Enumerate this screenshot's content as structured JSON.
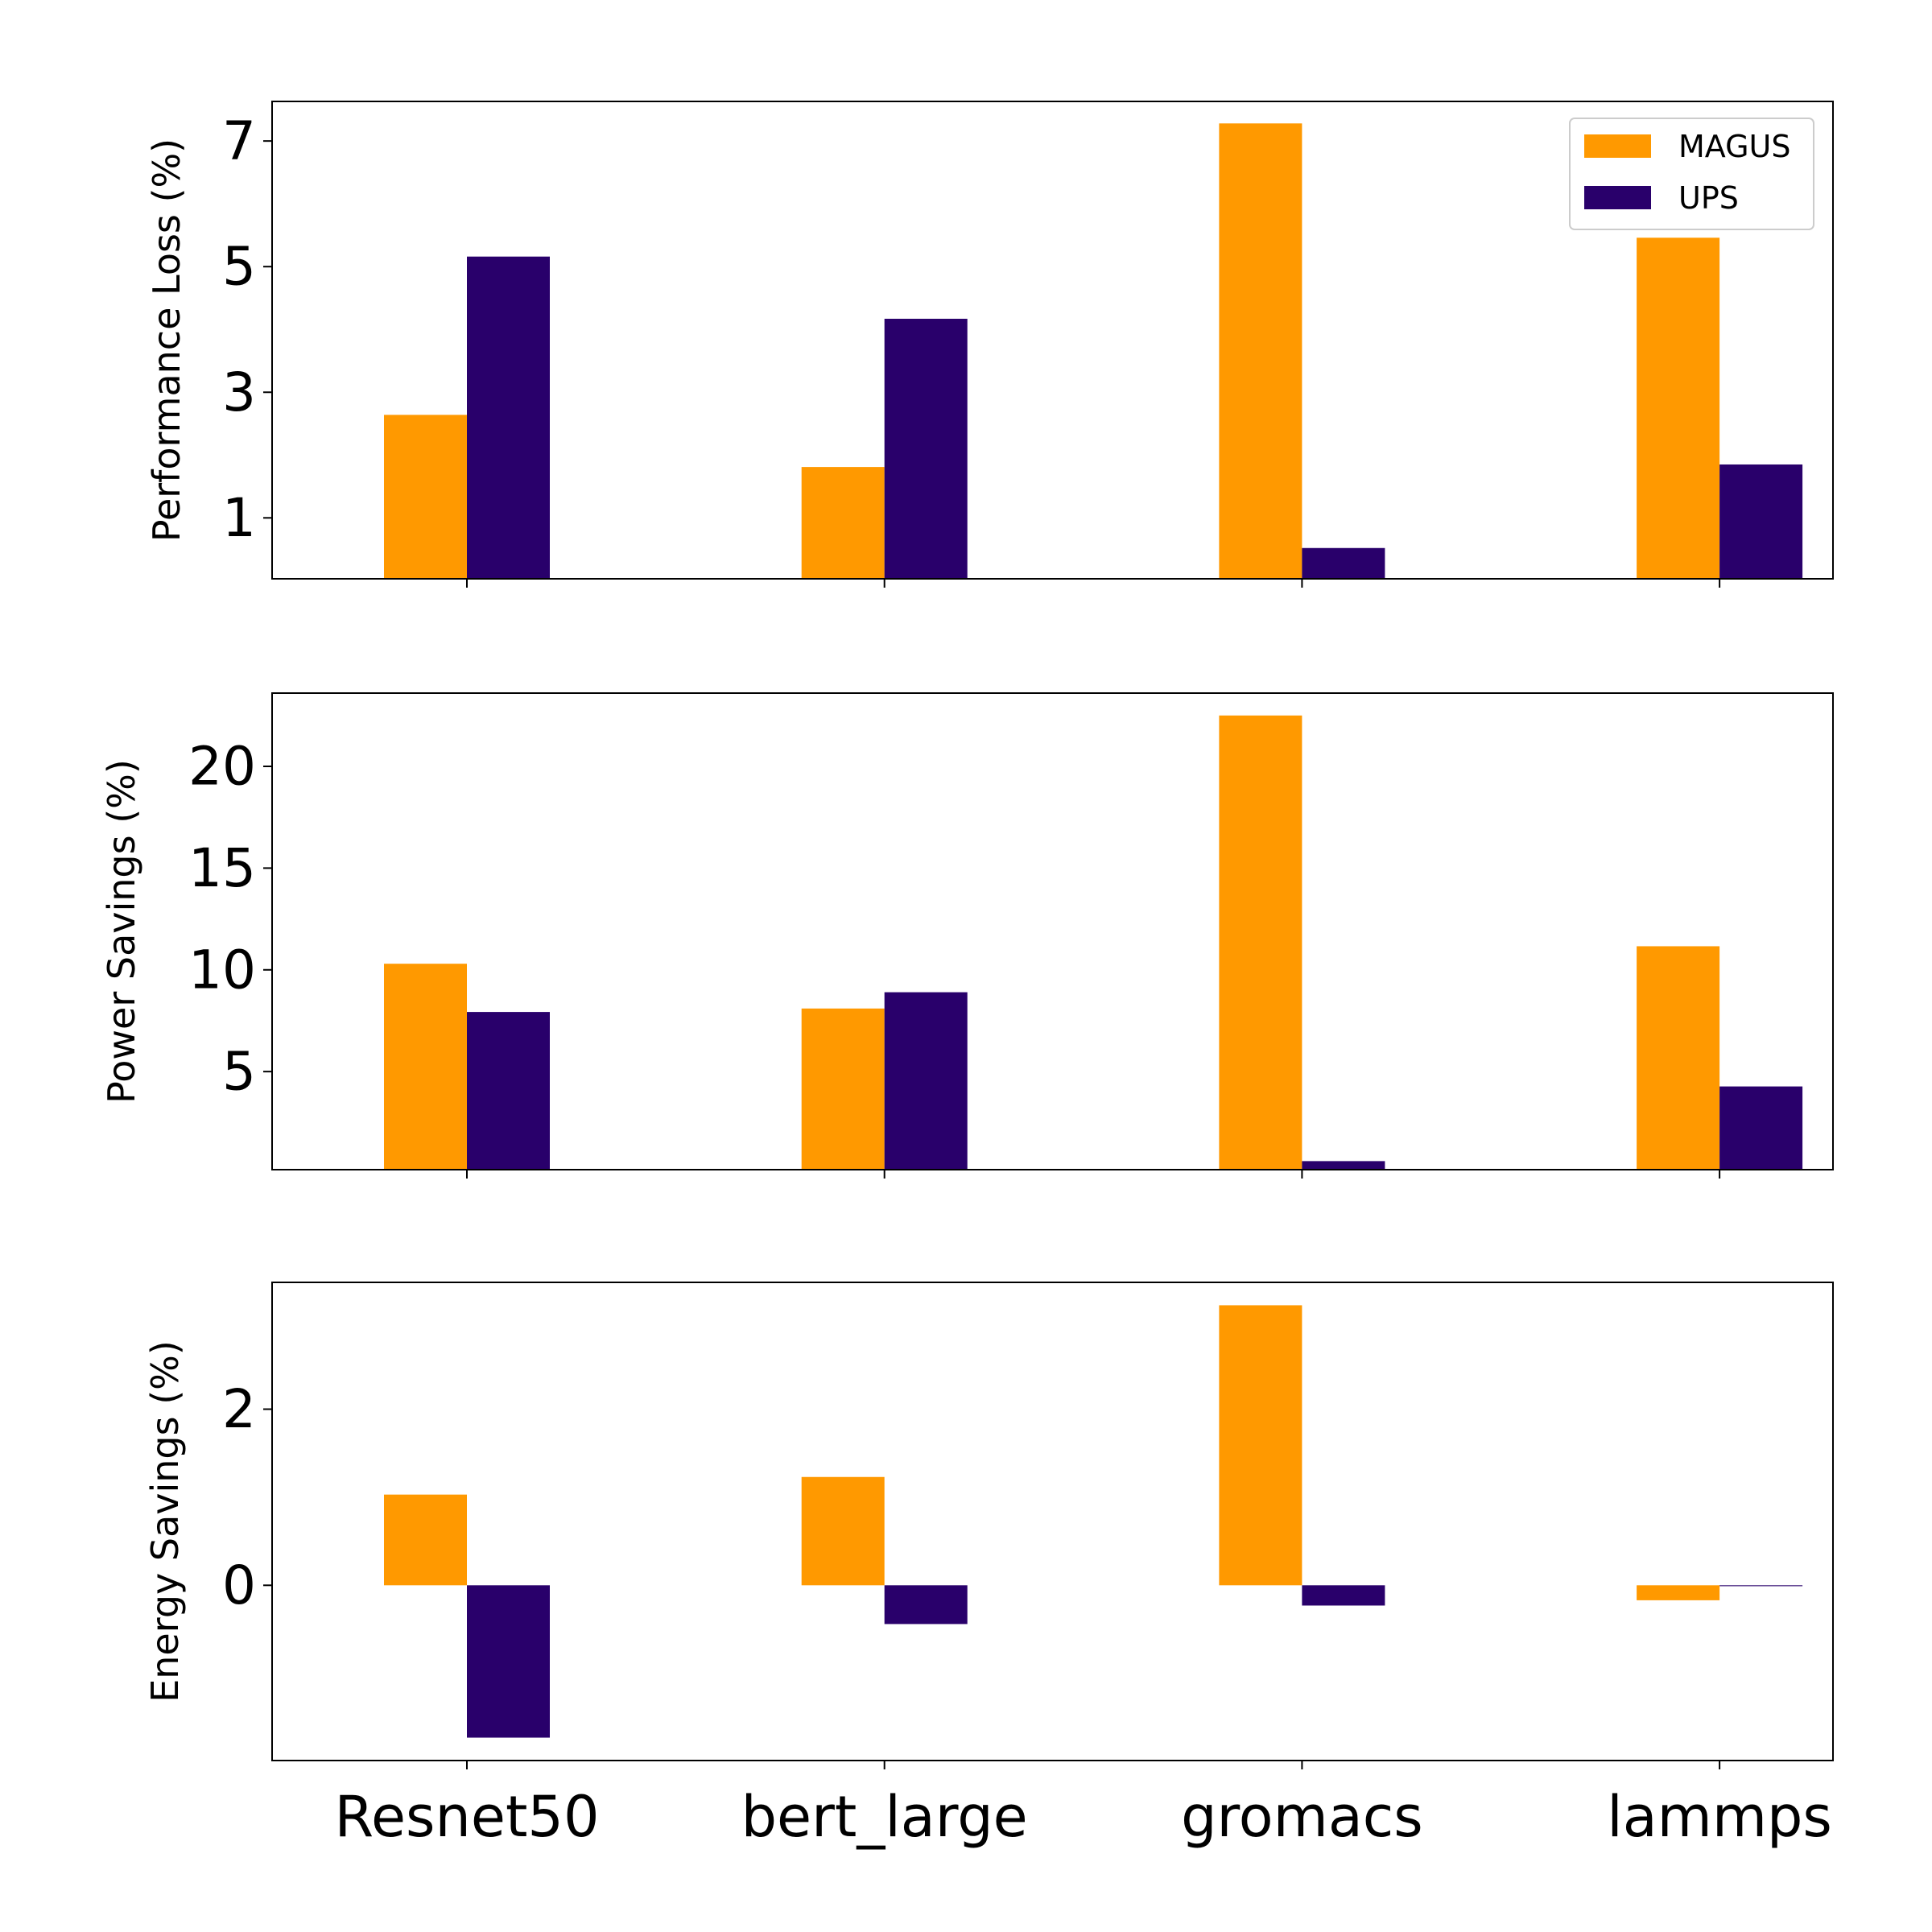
{
  "chart_data": [
    {
      "type": "bar",
      "ylabel": "Performance Loss (%)",
      "series": [
        {
          "name": "MAGUS",
          "color": "#ff9900",
          "values": [
            2.64,
            1.81,
            7.28,
            5.46
          ]
        },
        {
          "name": "UPS",
          "color": "#29006b",
          "values": [
            5.16,
            4.17,
            0.52,
            1.85
          ]
        }
      ],
      "ylim": [
        0.03,
        7.63
      ],
      "yticks": [
        1,
        3,
        5,
        7
      ],
      "legend": "upper right"
    },
    {
      "type": "bar",
      "ylabel": "Power Savings (%)",
      "series": [
        {
          "color": "#ff9900",
          "values": [
            10.3,
            8.1,
            22.5,
            11.16
          ]
        },
        {
          "color": "#29006b",
          "values": [
            7.93,
            8.9,
            0.6,
            4.27
          ]
        }
      ],
      "ylim": [
        0.18,
        23.6
      ],
      "yticks": [
        5,
        10,
        15,
        20
      ]
    },
    {
      "type": "bar",
      "ylabel": "Energy Savings (%)",
      "categories": [
        "Resnet50",
        "bert_large",
        "gromacs",
        "lammps"
      ],
      "series": [
        {
          "color": "#ff9900",
          "values": [
            1.03,
            1.23,
            3.18,
            -0.17
          ]
        },
        {
          "color": "#29006b",
          "values": [
            -1.73,
            -0.44,
            -0.23,
            -0.01
          ]
        }
      ],
      "ylim": [
        -1.99,
        3.44
      ],
      "yticks": [
        0,
        2
      ]
    }
  ]
}
